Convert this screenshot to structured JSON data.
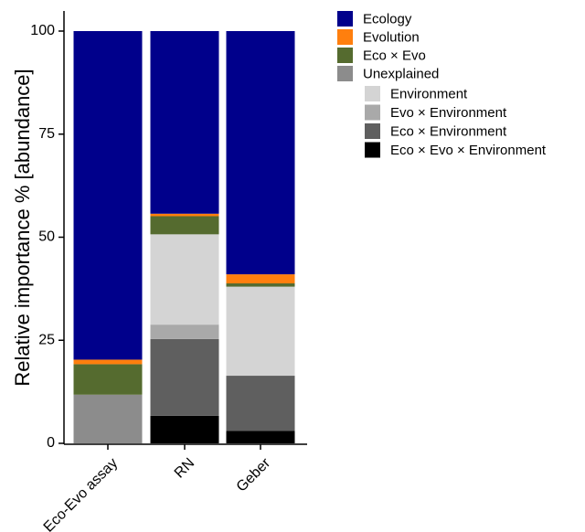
{
  "chart_data": {
    "type": "bar",
    "stacked": true,
    "categories": [
      "Eco-Evo assay",
      "RN",
      "Geber"
    ],
    "ylabel": "Relative importance % [abundance]",
    "xlabel": "",
    "ylim": [
      0,
      100
    ],
    "yticks": [
      "0",
      "25",
      "50",
      "75",
      "100"
    ],
    "grid": false,
    "legend_position": "right",
    "series": [
      {
        "name": "Eco × Evo × Environment",
        "color": "#000000",
        "values": [
          0,
          6.7,
          3.0
        ]
      },
      {
        "name": "Eco × Environment",
        "color": "#5f5f5f",
        "values": [
          0,
          18.6,
          13.4
        ]
      },
      {
        "name": "Evo × Environment",
        "color": "#a9a9a9",
        "values": [
          0,
          3.5,
          0
        ]
      },
      {
        "name": "Environment",
        "color": "#d4d4d4",
        "values": [
          0,
          21.9,
          21.6
        ]
      },
      {
        "name": "Unexplained",
        "color": "#8c8c8c",
        "values": [
          11.8,
          0,
          0
        ]
      },
      {
        "name": "Eco × Evo",
        "color": "#556b2f",
        "values": [
          7.4,
          4.4,
          0.8
        ]
      },
      {
        "name": "Evolution",
        "color": "#ff7f0e",
        "values": [
          1.1,
          0.6,
          2.2
        ]
      },
      {
        "name": "Ecology",
        "color": "#00008b",
        "values": [
          79.7,
          44.3,
          59.0
        ]
      }
    ],
    "legend": [
      {
        "name": "Ecology",
        "color": "#00008b",
        "group": "main"
      },
      {
        "name": "Evolution",
        "color": "#ff7f0e",
        "group": "main"
      },
      {
        "name": "Eco × Evo",
        "color": "#556b2f",
        "group": "main"
      },
      {
        "name": "Unexplained",
        "color": "#8c8c8c",
        "group": "main"
      },
      {
        "name": "Environment",
        "color": "#d4d4d4",
        "group": "sub"
      },
      {
        "name": "Evo × Environment",
        "color": "#a9a9a9",
        "group": "sub"
      },
      {
        "name": "Eco × Environment",
        "color": "#5f5f5f",
        "group": "sub"
      },
      {
        "name": "Eco × Evo × Environment",
        "color": "#000000",
        "group": "sub"
      }
    ]
  }
}
